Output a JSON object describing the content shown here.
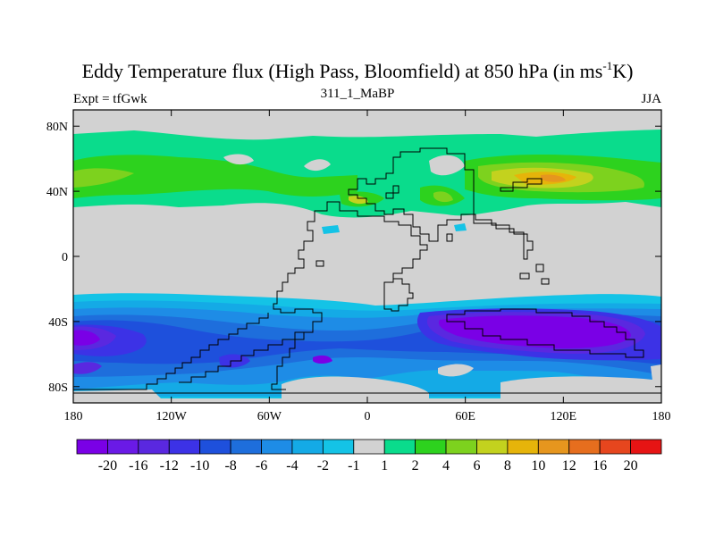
{
  "title": {
    "main": "Eddy Temperature flux (High Pass, Bloomfield) at 850 hPa (in ms",
    "sup": "-1",
    "tail": "K)",
    "left": "Expt = tfGwk",
    "center": "311_1_MaBP",
    "right": "JJA"
  },
  "chart_data": {
    "type": "heatmap",
    "title": "Eddy Temperature flux (High Pass, Bloomfield) at 850 hPa (in ms-1K)",
    "subtitle_left": "Expt = tfGwk",
    "subtitle_center": "311_1_MaBP",
    "subtitle_right": "JJA",
    "xlim": [
      -180,
      180
    ],
    "ylim": [
      -90,
      90
    ],
    "x_ticks": [
      {
        "value": -180,
        "label": "180"
      },
      {
        "value": -120,
        "label": "120W"
      },
      {
        "value": -60,
        "label": "60W"
      },
      {
        "value": 0,
        "label": "0"
      },
      {
        "value": 60,
        "label": "60E"
      },
      {
        "value": 120,
        "label": "120E"
      },
      {
        "value": 180,
        "label": "180"
      }
    ],
    "y_ticks": [
      {
        "value": 80,
        "label": "80N"
      },
      {
        "value": 40,
        "label": "40N"
      },
      {
        "value": 0,
        "label": "0"
      },
      {
        "value": -40,
        "label": "40S"
      },
      {
        "value": -80,
        "label": "80S"
      }
    ],
    "colorbar": {
      "colors": [
        "#7a00e6",
        "#6a1ae6",
        "#5a28e0",
        "#3c32e6",
        "#1e50dc",
        "#1e6edc",
        "#1e8ce6",
        "#14aae6",
        "#14c3e6",
        "#d2d2d2",
        "#0adc8c",
        "#2dd21e",
        "#7dd21e",
        "#c3d21e",
        "#e6b40a",
        "#e6961e",
        "#e66e1e",
        "#e6461e",
        "#e61414"
      ],
      "labels": [
        "-20",
        "-16",
        "-12",
        "-10",
        "-8",
        "-6",
        "-4",
        "-2",
        "-1",
        "1",
        "2",
        "4",
        "6",
        "8",
        "10",
        "12",
        "16",
        "20"
      ]
    },
    "features": [
      {
        "name": "NH midlatitude band",
        "lon": [
          -180,
          180
        ],
        "lat": [
          30,
          70
        ],
        "value_range": [
          2,
          6
        ]
      },
      {
        "name": "North Pacific maximum",
        "lon": [
          80,
          120
        ],
        "lat": [
          40,
          50
        ],
        "value_range": [
          8,
          12
        ]
      },
      {
        "name": "SH midlatitude band",
        "lon": [
          -180,
          180
        ],
        "lat": [
          -80,
          -30
        ],
        "value_range": [
          -20,
          -2
        ]
      },
      {
        "name": "South Indian Ocean minimum",
        "lon": [
          40,
          180
        ],
        "lat": [
          -60,
          -40
        ],
        "value_range": [
          -20,
          -16
        ]
      },
      {
        "name": "Equatorial / polar neutral",
        "value_range": [
          -1,
          1
        ]
      }
    ]
  }
}
